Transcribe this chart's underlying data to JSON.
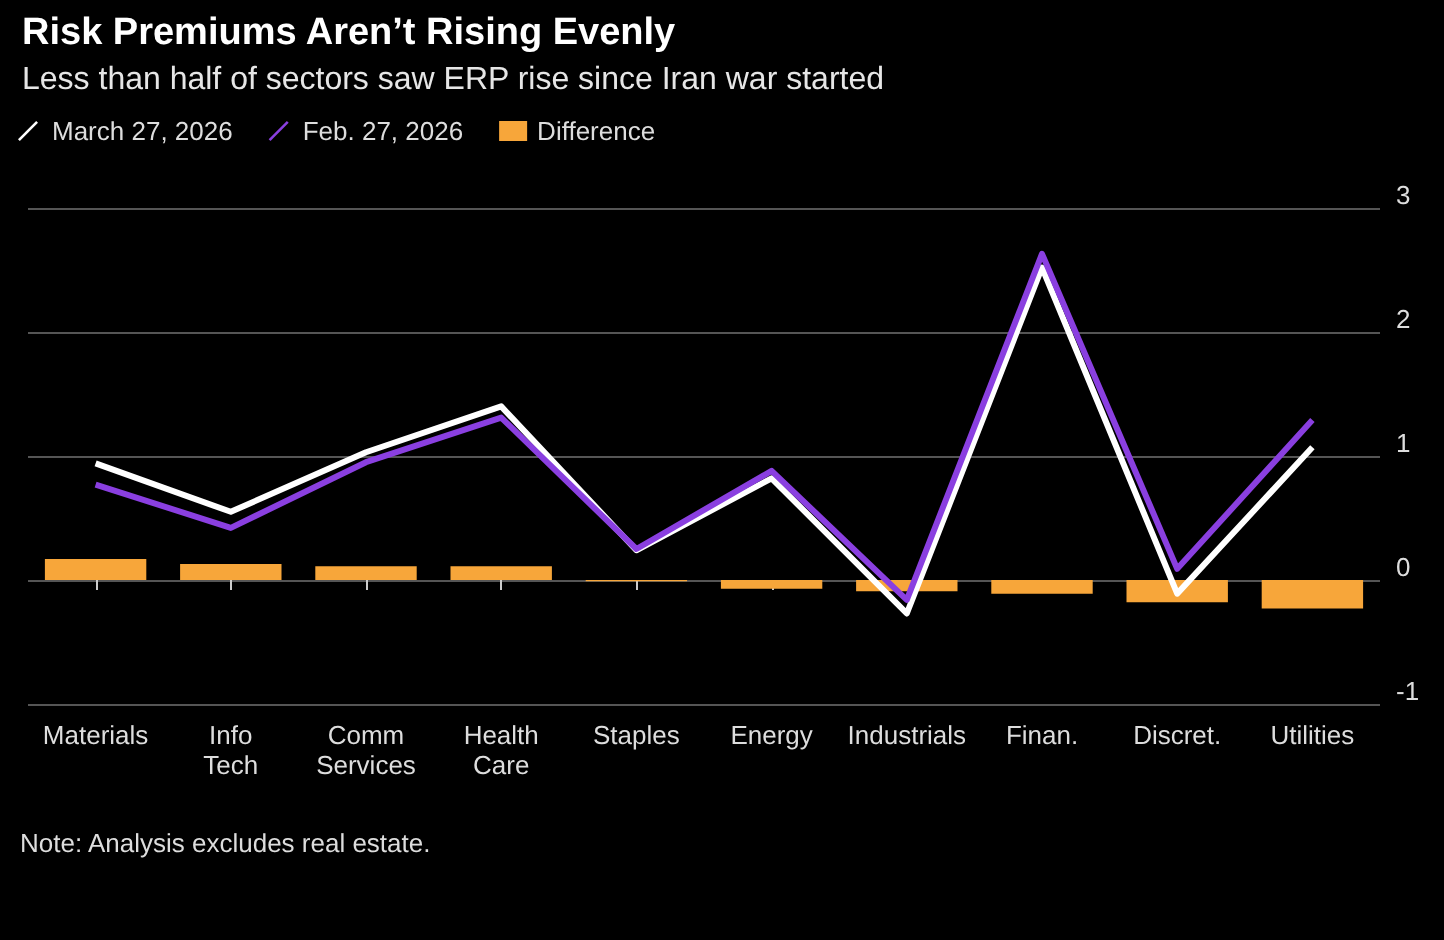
{
  "chart_data": {
    "type": "line",
    "title": "Risk Premiums Aren’t Rising Evenly",
    "subtitle": "Less than half of sectors saw ERP rise since Iran war started",
    "categories": [
      "Materials",
      "Info Tech",
      "Comm Services",
      "Health Care",
      "Staples",
      "Energy",
      "Industrials",
      "Finan.",
      "Discret.",
      "Utilities"
    ],
    "series": [
      {
        "name": "March 27, 2026",
        "color": "#ffffff",
        "values": [
          0.94,
          0.55,
          1.03,
          1.4,
          0.24,
          0.82,
          -0.27,
          2.52,
          -0.11,
          1.07
        ]
      },
      {
        "name": "Feb. 27, 2026",
        "color": "#8a3fe0",
        "values": [
          0.77,
          0.42,
          0.95,
          1.31,
          0.25,
          0.88,
          -0.16,
          2.63,
          0.09,
          1.29
        ]
      },
      {
        "name": "Difference",
        "type": "bar",
        "color": "#f7a63a",
        "values": [
          0.17,
          0.13,
          0.11,
          0.11,
          -0.01,
          -0.07,
          -0.09,
          -0.11,
          -0.18,
          -0.23
        ]
      }
    ],
    "ylim": [
      -1,
      3
    ],
    "yticks": [
      -1,
      0,
      1,
      2,
      3
    ],
    "grid": "y",
    "legend": "top left",
    "annotations": [
      "Note: Analysis excludes real estate."
    ]
  }
}
